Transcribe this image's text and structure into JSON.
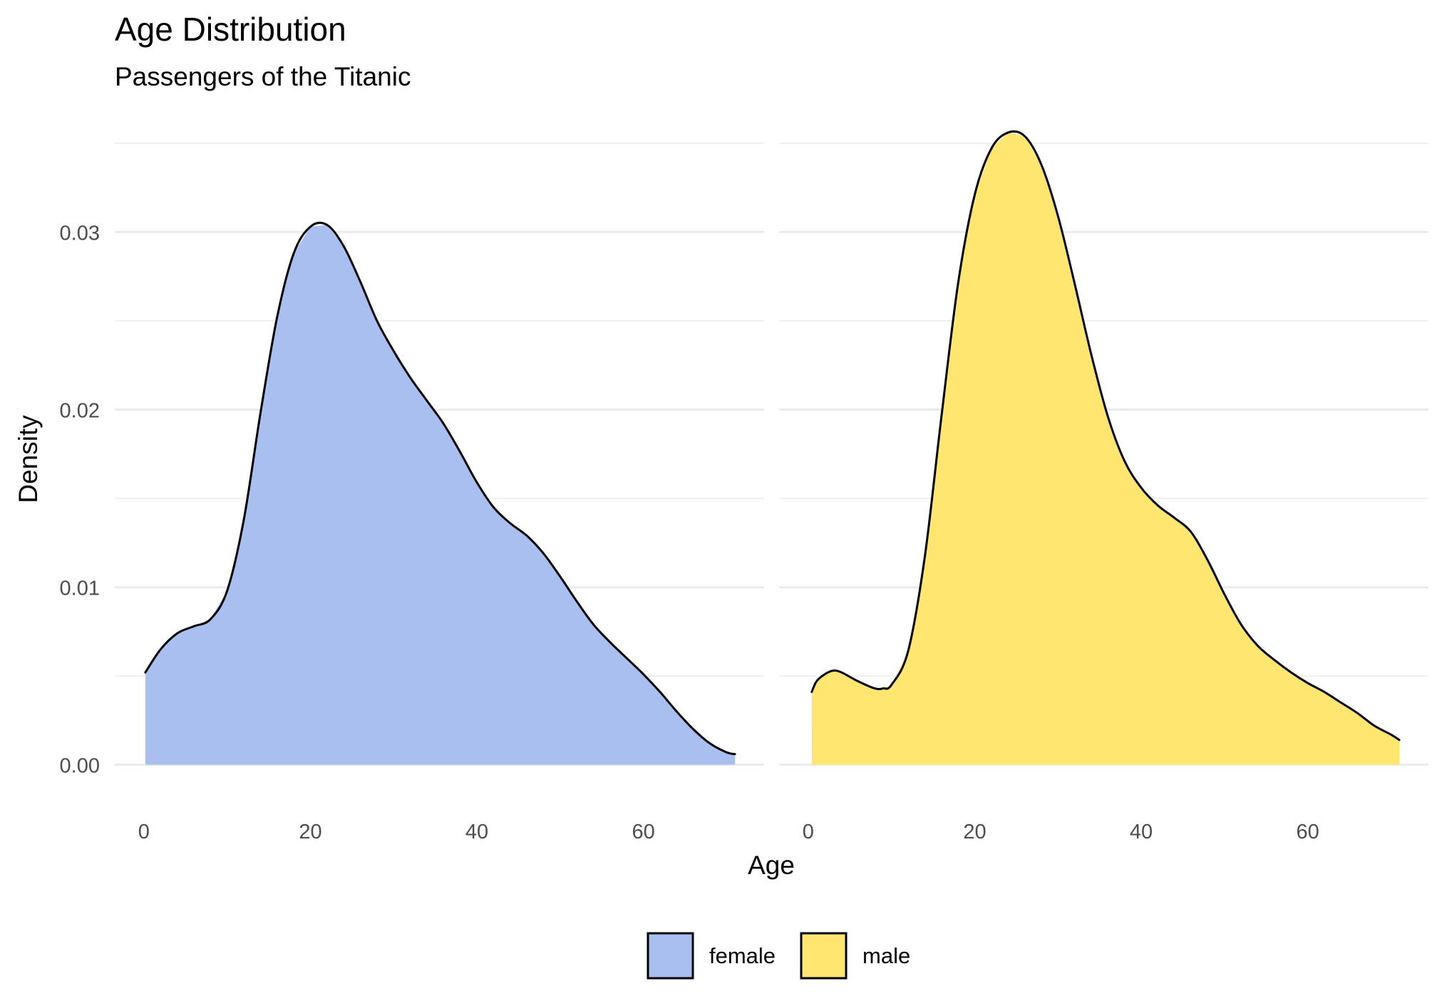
{
  "chart_data": {
    "type": "area",
    "title": "Age Distribution",
    "subtitle": "Passengers of the Titanic",
    "xlabel": "Age",
    "ylabel": "Density",
    "xlim": [
      -3.5,
      74.5
    ],
    "ylim": [
      -0.0019,
      0.0362
    ],
    "x_ticks": [
      0,
      20,
      40,
      60
    ],
    "x_tick_labels": [
      "0",
      "20",
      "40",
      "60"
    ],
    "y_ticks": [
      0.0,
      0.01,
      0.02,
      0.03
    ],
    "y_tick_labels": [
      "0.00",
      "0.01",
      "0.02",
      "0.03"
    ],
    "grid": true,
    "legend_position": "bottom",
    "series": [
      {
        "name": "female",
        "color": "#A9BFEF",
        "points": [
          [
            0.17,
            0.0052
          ],
          [
            2,
            0.0065
          ],
          [
            4,
            0.0074
          ],
          [
            6,
            0.0078
          ],
          [
            8,
            0.0082
          ],
          [
            10,
            0.0098
          ],
          [
            12,
            0.0138
          ],
          [
            14,
            0.0198
          ],
          [
            16,
            0.0252
          ],
          [
            18,
            0.0288
          ],
          [
            20,
            0.0303
          ],
          [
            22,
            0.0304
          ],
          [
            24,
            0.0292
          ],
          [
            26,
            0.0272
          ],
          [
            28,
            0.025
          ],
          [
            30,
            0.0233
          ],
          [
            32,
            0.0218
          ],
          [
            34,
            0.0205
          ],
          [
            36,
            0.0192
          ],
          [
            38,
            0.0176
          ],
          [
            40,
            0.0159
          ],
          [
            42,
            0.0145
          ],
          [
            44,
            0.0136
          ],
          [
            46,
            0.0129
          ],
          [
            48,
            0.0119
          ],
          [
            50,
            0.0106
          ],
          [
            52,
            0.0092
          ],
          [
            54,
            0.0079
          ],
          [
            56,
            0.0069
          ],
          [
            58,
            0.006
          ],
          [
            60,
            0.0051
          ],
          [
            62,
            0.0041
          ],
          [
            64,
            0.003
          ],
          [
            66,
            0.002
          ],
          [
            68,
            0.0012
          ],
          [
            70,
            0.0007
          ],
          [
            71,
            0.0006
          ]
        ]
      },
      {
        "name": "male",
        "color": "#FFE670",
        "points": [
          [
            0.42,
            0.0041
          ],
          [
            1,
            0.0047
          ],
          [
            2,
            0.0051
          ],
          [
            3,
            0.0053
          ],
          [
            4,
            0.0052
          ],
          [
            6,
            0.0047
          ],
          [
            8,
            0.0043
          ],
          [
            9,
            0.0043
          ],
          [
            10,
            0.0045
          ],
          [
            12,
            0.0064
          ],
          [
            14,
            0.0117
          ],
          [
            16,
            0.0196
          ],
          [
            18,
            0.0271
          ],
          [
            20,
            0.0321
          ],
          [
            22,
            0.0347
          ],
          [
            24,
            0.0356
          ],
          [
            26,
            0.0354
          ],
          [
            28,
            0.0338
          ],
          [
            30,
            0.0309
          ],
          [
            32,
            0.0271
          ],
          [
            34,
            0.0231
          ],
          [
            36,
            0.0196
          ],
          [
            38,
            0.0171
          ],
          [
            40,
            0.0156
          ],
          [
            42,
            0.0146
          ],
          [
            44,
            0.0139
          ],
          [
            46,
            0.0131
          ],
          [
            48,
            0.0115
          ],
          [
            50,
            0.0096
          ],
          [
            52,
            0.0079
          ],
          [
            54,
            0.0067
          ],
          [
            56,
            0.0059
          ],
          [
            58,
            0.0052
          ],
          [
            60,
            0.0046
          ],
          [
            62,
            0.0041
          ],
          [
            64,
            0.0035
          ],
          [
            66,
            0.0029
          ],
          [
            68,
            0.0022
          ],
          [
            70,
            0.0017
          ],
          [
            71,
            0.0014
          ]
        ]
      }
    ]
  }
}
